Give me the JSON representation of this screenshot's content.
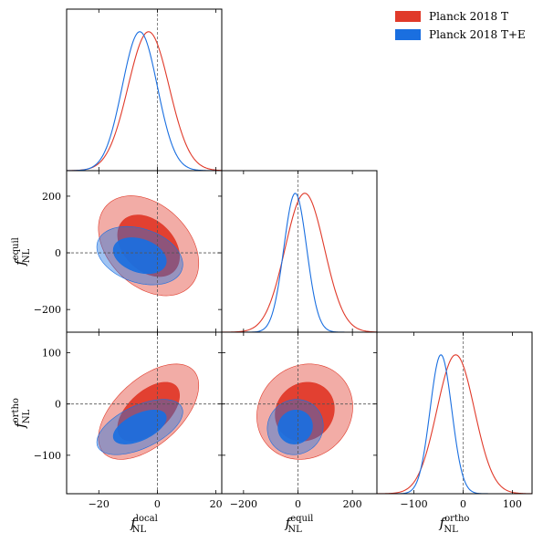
{
  "chart_data": {
    "type": "triangle-corner-plot",
    "parameters": [
      {
        "key": "local",
        "label_main": "f",
        "label_sub": "NL",
        "label_sup": "local",
        "range": [
          -31,
          22
        ],
        "ticks": [
          -20,
          0,
          20
        ]
      },
      {
        "key": "equil",
        "label_main": "f",
        "label_sub": "NL",
        "label_sup": "equil",
        "range": [
          -280,
          290
        ],
        "ticks": [
          -200,
          0,
          200
        ]
      },
      {
        "key": "ortho",
        "label_main": "f",
        "label_sub": "NL",
        "label_sup": "ortho",
        "range": [
          -175,
          140
        ],
        "ticks": [
          -100,
          0,
          100
        ]
      }
    ],
    "fiducial": {
      "local": 0,
      "equil": 0,
      "ortho": 0
    },
    "series": [
      {
        "name": "Planck 2018 T",
        "color": "#e03a2a",
        "mean": {
          "local": -3,
          "equil": 25,
          "ortho": -15
        },
        "sigma": {
          "local": 7.0,
          "equil": 72,
          "ortho": 38
        },
        "corr": {
          "local-equil": -0.35,
          "local-ortho": 0.55,
          "equil-ortho": 0.1
        }
      },
      {
        "name": "Planck 2018 T+E",
        "color": "#1a6fe0",
        "mean": {
          "local": -6,
          "equil": -10,
          "ortho": -45
        },
        "sigma": {
          "local": 6.0,
          "equil": 42,
          "ortho": 22
        },
        "corr": {
          "local-equil": -0.3,
          "local-ortho": 0.55,
          "equil-ortho": 0.05
        }
      }
    ],
    "contour_levels": [
      "68%",
      "95%"
    ],
    "legend": {
      "placement": "top-right",
      "entries": [
        "Planck 2018 T",
        "Planck 2018 T+E"
      ]
    }
  }
}
